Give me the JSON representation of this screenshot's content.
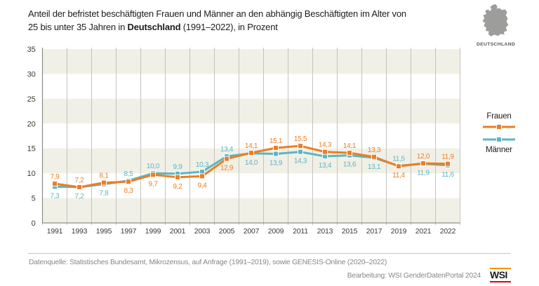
{
  "header": {
    "title_line1": "Anteil der befristet beschäftigten Frauen und Männer an den abhängig Beschäftigten im Alter von",
    "title_line2_pre": "25 bis unter 35 Jahren in ",
    "title_line2_bold": "Deutschland",
    "title_line2_post": " (1991–2022), in Prozent",
    "country_label": "DEUTSCHLAND"
  },
  "legend": {
    "frauen_label": "Frauen",
    "maenner_label": "Männer"
  },
  "footer": {
    "source": "Datenquelle: Statistisches Bundesamt, Mikrozensus, auf Anfrage (1991–2019), sowie GENESIS-Online (2020–2022)",
    "credit": "Bearbeitung: WSI GenderDatenPortal 2024",
    "logo_text": "WSI"
  },
  "colors": {
    "frauen": "#ED7D24",
    "maenner": "#5BB6C3",
    "band": "#F1F0E6",
    "grid": "#C4C3BD",
    "axis": "#8C8C88",
    "tick_text": "#3A3A38",
    "title_text": "#1D1D1B",
    "footer_text": "#878786",
    "map_gray": "#9D9D9C",
    "logo_top_line": "#F39200",
    "logo_bottom_line": "#E2001A"
  },
  "chart_data": {
    "type": "line",
    "title": "Anteil der befristet beschäftigten Frauen und Männer an den abhängig Beschäftigten im Alter von 25 bis unter 35 Jahren in Deutschland (1991–2022), in Prozent",
    "categories": [
      "1991",
      "1993",
      "1995",
      "1997",
      "1999",
      "2001",
      "2003",
      "2005",
      "2007",
      "2009",
      "2011",
      "2013",
      "2015",
      "2017",
      "2019",
      "2021",
      "2022"
    ],
    "series": [
      {
        "name": "Frauen",
        "color_key": "frauen",
        "values": [
          7.9,
          7.2,
          8.1,
          8.3,
          9.7,
          9.2,
          9.4,
          12.9,
          14.1,
          15.1,
          15.5,
          14.3,
          14.1,
          13.3,
          11.4,
          12.0,
          11.9
        ]
      },
      {
        "name": "Männer",
        "color_key": "maenner",
        "values": [
          7.3,
          7.2,
          7.8,
          8.5,
          10.0,
          9.9,
          10.3,
          13.4,
          14.0,
          13.9,
          14.3,
          13.4,
          13.6,
          13.1,
          11.5,
          11.9,
          11.6
        ]
      }
    ],
    "ylim": [
      0,
      35
    ],
    "yticks": [
      0,
      5,
      10,
      15,
      20,
      25,
      30,
      35
    ],
    "xlabel": "",
    "ylabel": "",
    "unit": "Prozent",
    "decimal_separator": ",",
    "grid": "vertical category separators, horizontal alternating beige bands every 5 units",
    "legend_position": "right",
    "data_labels": "shown, higher series above marker, lower series below marker"
  }
}
